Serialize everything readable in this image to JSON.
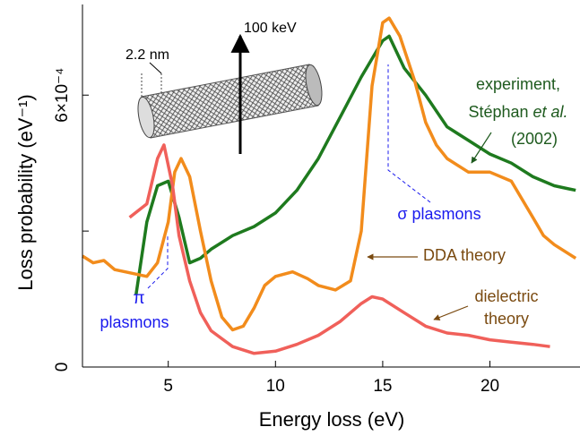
{
  "chart_data": {
    "type": "line",
    "xlabel": "Energy loss (eV)",
    "ylabel": "Loss probability (eV⁻¹)",
    "xlim": [
      1,
      24.2
    ],
    "xticks": [
      5,
      10,
      15,
      20
    ],
    "ylim": [
      0,
      8
    ],
    "yticks": [
      0,
      {
        "value": 3,
        "label": null
      },
      {
        "value": 6,
        "label": "6×10⁻⁴"
      }
    ],
    "series": [
      {
        "color": "#1e7a1e",
        "x": [
          3.5,
          4,
          4.5,
          5,
          5.5,
          6,
          6.5,
          7,
          8,
          9,
          10,
          11,
          12,
          13,
          14,
          15,
          15.3,
          16,
          17,
          18,
          19,
          20,
          21,
          22,
          23,
          24
        ],
        "values": [
          1.6,
          3.2,
          4.0,
          4.1,
          3.3,
          2.3,
          2.4,
          2.6,
          2.9,
          3.1,
          3.4,
          3.9,
          4.6,
          5.5,
          6.4,
          7.2,
          7.3,
          6.6,
          6.0,
          5.3,
          5.0,
          4.7,
          4.5,
          4.2,
          4.0,
          3.9
        ]
      },
      {
        "name": "DDA theory",
        "color": "#f28c1c",
        "x": [
          1,
          1.5,
          2,
          2.5,
          3,
          4,
          4.5,
          5,
          5.3,
          5.6,
          6,
          6.5,
          7,
          7.5,
          8,
          8.5,
          9,
          9.5,
          10,
          10.8,
          11.5,
          12,
          12.8,
          13.5,
          14,
          14.5,
          15,
          15.3,
          15.8,
          16.5,
          17,
          17.5,
          18,
          19,
          20,
          21,
          22,
          22.5,
          23,
          24
        ],
        "values": [
          2.45,
          2.3,
          2.35,
          2.15,
          2.1,
          2.0,
          2.3,
          3.2,
          4.3,
          4.6,
          4.2,
          3.0,
          1.9,
          1.1,
          0.82,
          0.9,
          1.3,
          1.8,
          2.0,
          2.1,
          1.95,
          1.8,
          1.7,
          1.9,
          3.0,
          6.2,
          7.6,
          7.7,
          7.3,
          6.3,
          5.4,
          4.9,
          4.6,
          4.3,
          4.3,
          4.1,
          3.3,
          2.9,
          2.7,
          2.4
        ]
      },
      {
        "color": "#f0605a",
        "x": [
          3.2,
          4,
          4.5,
          4.8,
          5.2,
          5.5,
          6,
          6.5,
          7,
          8,
          9,
          10,
          11,
          12,
          13,
          14,
          14.5,
          15,
          16,
          17,
          18,
          19,
          20,
          21,
          22,
          22.8
        ],
        "values": [
          3.3,
          3.6,
          4.6,
          4.9,
          4.0,
          2.9,
          1.9,
          1.2,
          0.8,
          0.45,
          0.3,
          0.35,
          0.5,
          0.7,
          1.0,
          1.4,
          1.55,
          1.5,
          1.2,
          0.9,
          0.75,
          0.7,
          0.6,
          0.55,
          0.5,
          0.45
        ]
      }
    ],
    "annotations": {
      "beam": "100 keV",
      "diameter": "2.2 nm",
      "experiment": [
        "experiment,",
        "Stéphan ",
        "et al.",
        "(2002)"
      ],
      "sigma": "σ plasmons",
      "dielectric": [
        "dielectric",
        "theory"
      ],
      "pi": [
        "π",
        "plasmons"
      ]
    }
  }
}
